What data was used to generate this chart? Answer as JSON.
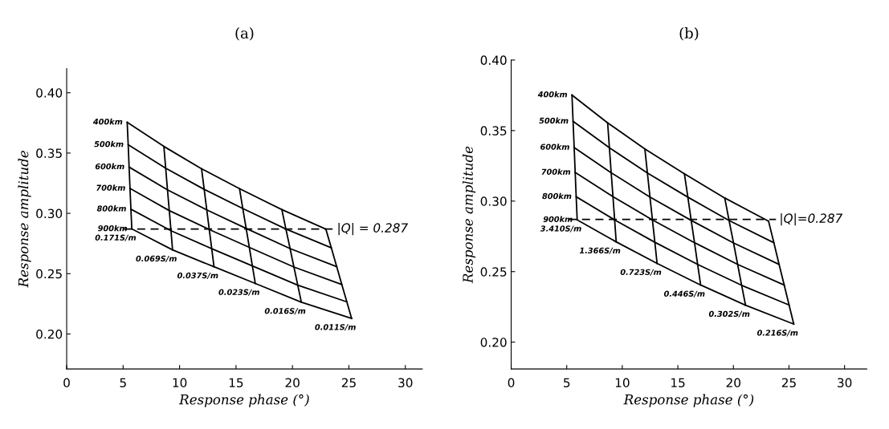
{
  "chart_data": [
    {
      "type": "line",
      "title": "(a)",
      "xlabel": "Response phase (°)",
      "ylabel": "Response amplitude",
      "xlim": [
        0,
        31.5
      ],
      "ylim": [
        0.171,
        0.42
      ],
      "xticks": [
        0,
        5,
        10,
        15,
        20,
        25,
        30
      ],
      "yticks": [
        {
          "value": 0.2,
          "label": "0.20"
        },
        {
          "value": 0.25,
          "label": "0.25"
        },
        {
          "value": 0.3,
          "label": "0.30"
        },
        {
          "value": 0.35,
          "label": "0.35"
        },
        {
          "value": 0.4,
          "label": "0.40"
        }
      ],
      "grid": false,
      "legend": false,
      "marker": "none",
      "line_style": "solid",
      "ref_lines": [
        {
          "axis": "y",
          "value": 0.287,
          "label": "|Q| = 0.287",
          "line_style": "dashed",
          "color": "#000000"
        }
      ],
      "series": [
        {
          "name": "400km",
          "color": "#000000",
          "x": [
            5.36,
            8.61,
            11.95,
            15.31,
            19.06,
            22.96
          ],
          "values": [
            0.3755,
            0.3555,
            0.337,
            0.3205,
            0.3031,
            0.2869
          ]
        },
        {
          "name": "500km",
          "color": "#000000",
          "x": [
            5.45,
            8.77,
            12.18,
            15.6,
            19.42,
            23.44
          ],
          "values": [
            0.3569,
            0.3375,
            0.3199,
            0.304,
            0.287,
            0.2714
          ]
        },
        {
          "name": "600km",
          "color": "#000000",
          "x": [
            5.53,
            8.93,
            12.41,
            15.9,
            19.79,
            23.92
          ],
          "values": [
            0.3384,
            0.3195,
            0.3029,
            0.2875,
            0.2708,
            0.2558
          ]
        },
        {
          "name": "700km",
          "color": "#000000",
          "x": [
            5.61,
            9.09,
            12.63,
            16.18,
            20.13,
            24.37
          ],
          "values": [
            0.3207,
            0.3023,
            0.2866,
            0.2718,
            0.2555,
            0.241
          ]
        },
        {
          "name": "800km",
          "color": "#000000",
          "x": [
            5.69,
            9.24,
            12.85,
            16.45,
            20.47,
            24.82
          ],
          "values": [
            0.3035,
            0.2856,
            0.2707,
            0.2564,
            0.2405,
            0.2266
          ]
        },
        {
          "name": "900km",
          "color": "#000000",
          "x": [
            5.77,
            9.38,
            13.05,
            16.71,
            20.79,
            25.24
          ],
          "values": [
            0.2871,
            0.2697,
            0.2557,
            0.2419,
            0.2263,
            0.2129
          ]
        },
        {
          "name": "0.171S/m",
          "color": "#000000",
          "x": [
            5.36,
            5.45,
            5.53,
            5.61,
            5.69,
            5.77
          ],
          "values": [
            0.3755,
            0.3569,
            0.3384,
            0.3207,
            0.3035,
            0.2871
          ]
        },
        {
          "name": "0.069S/m",
          "color": "#000000",
          "x": [
            8.61,
            8.77,
            8.93,
            9.09,
            9.24,
            9.38
          ],
          "values": [
            0.3555,
            0.3375,
            0.3195,
            0.3023,
            0.2856,
            0.2697
          ]
        },
        {
          "name": "0.037S/m",
          "color": "#000000",
          "x": [
            11.95,
            12.18,
            12.41,
            12.63,
            12.85,
            13.05
          ],
          "values": [
            0.337,
            0.3199,
            0.3029,
            0.2866,
            0.2707,
            0.2557
          ]
        },
        {
          "name": "0.023S/m",
          "color": "#000000",
          "x": [
            15.31,
            15.6,
            15.9,
            16.18,
            16.45,
            16.71
          ],
          "values": [
            0.3205,
            0.304,
            0.2875,
            0.2718,
            0.2564,
            0.2419
          ]
        },
        {
          "name": "0.016S/m",
          "color": "#000000",
          "x": [
            19.06,
            19.42,
            19.79,
            20.13,
            20.47,
            20.79
          ],
          "values": [
            0.3031,
            0.287,
            0.2708,
            0.2555,
            0.2405,
            0.2263
          ]
        },
        {
          "name": "0.011S/m",
          "color": "#000000",
          "x": [
            22.96,
            23.44,
            23.92,
            24.37,
            24.82,
            25.24
          ],
          "values": [
            0.2869,
            0.2714,
            0.2558,
            0.241,
            0.2266,
            0.2129
          ]
        }
      ]
    },
    {
      "type": "line",
      "title": "(b)",
      "xlabel": "Response phase (°)",
      "ylabel": "Response amplitude",
      "xlim": [
        0,
        32
      ],
      "ylim": [
        0.181,
        0.4
      ],
      "xticks": [
        0,
        5,
        10,
        15,
        20,
        25,
        30
      ],
      "yticks": [
        {
          "value": 0.2,
          "label": "0.20"
        },
        {
          "value": 0.25,
          "label": "0.25"
        },
        {
          "value": 0.3,
          "label": "0.30"
        },
        {
          "value": 0.35,
          "label": "0.35"
        },
        {
          "value": 0.4,
          "label": "0.40"
        }
      ],
      "grid": false,
      "legend": false,
      "marker": "none",
      "line_style": "solid",
      "ref_lines": [
        {
          "axis": "y",
          "value": 0.287,
          "label": "|Q|=0.287",
          "line_style": "dashed",
          "color": "#000000"
        }
      ],
      "series": [
        {
          "name": "400km",
          "color": "#000000",
          "x": [
            5.47,
            8.68,
            12.03,
            15.59,
            19.22,
            23.16
          ],
          "values": [
            0.3752,
            0.3555,
            0.337,
            0.3194,
            0.3022,
            0.2858
          ]
        },
        {
          "name": "500km",
          "color": "#000000",
          "x": [
            5.57,
            8.84,
            12.26,
            15.9,
            19.61,
            23.64
          ],
          "values": [
            0.3566,
            0.3378,
            0.3199,
            0.3028,
            0.2862,
            0.2705
          ]
        },
        {
          "name": "600km",
          "color": "#000000",
          "x": [
            5.67,
            9.0,
            12.49,
            16.2,
            20.01,
            24.11
          ],
          "values": [
            0.338,
            0.3201,
            0.3029,
            0.2863,
            0.2703,
            0.2551
          ]
        },
        {
          "name": "700km",
          "color": "#000000",
          "x": [
            5.76,
            9.16,
            12.71,
            16.5,
            20.38,
            24.57
          ],
          "values": [
            0.3203,
            0.3032,
            0.2867,
            0.2705,
            0.2551,
            0.2405
          ]
        },
        {
          "name": "800km",
          "color": "#000000",
          "x": [
            5.85,
            9.31,
            12.93,
            16.78,
            20.74,
            25.01
          ],
          "values": [
            0.3031,
            0.2867,
            0.2708,
            0.2551,
            0.2403,
            0.2263
          ]
        },
        {
          "name": "900km",
          "color": "#000000",
          "x": [
            5.94,
            9.45,
            13.13,
            17.05,
            21.09,
            25.43
          ],
          "values": [
            0.2867,
            0.2711,
            0.2558,
            0.2405,
            0.2262,
            0.2128
          ]
        },
        {
          "name": "3.410S/m",
          "color": "#000000",
          "x": [
            5.47,
            5.57,
            5.67,
            5.76,
            5.85,
            5.94
          ],
          "values": [
            0.3752,
            0.3566,
            0.338,
            0.3203,
            0.3031,
            0.2867
          ]
        },
        {
          "name": "1.366S/m",
          "color": "#000000",
          "x": [
            8.68,
            8.84,
            9.0,
            9.16,
            9.31,
            9.45
          ],
          "values": [
            0.3555,
            0.3378,
            0.3201,
            0.3032,
            0.2867,
            0.2711
          ]
        },
        {
          "name": "0.723S/m",
          "color": "#000000",
          "x": [
            12.03,
            12.26,
            12.49,
            12.71,
            12.93,
            13.13
          ],
          "values": [
            0.337,
            0.3199,
            0.3029,
            0.2867,
            0.2708,
            0.2558
          ]
        },
        {
          "name": "0.446S/m",
          "color": "#000000",
          "x": [
            15.59,
            15.9,
            16.2,
            16.5,
            16.78,
            17.05
          ],
          "values": [
            0.3194,
            0.3028,
            0.2863,
            0.2705,
            0.2551,
            0.2405
          ]
        },
        {
          "name": "0.302S/m",
          "color": "#000000",
          "x": [
            19.22,
            19.61,
            20.01,
            20.38,
            20.74,
            21.09
          ],
          "values": [
            0.3022,
            0.2862,
            0.2703,
            0.2551,
            0.2403,
            0.2262
          ]
        },
        {
          "name": "0.216S/m",
          "color": "#000000",
          "x": [
            23.16,
            23.64,
            24.11,
            24.57,
            25.01,
            25.43
          ],
          "values": [
            0.2858,
            0.2705,
            0.2551,
            0.2405,
            0.2263,
            0.2128
          ]
        }
      ]
    }
  ]
}
